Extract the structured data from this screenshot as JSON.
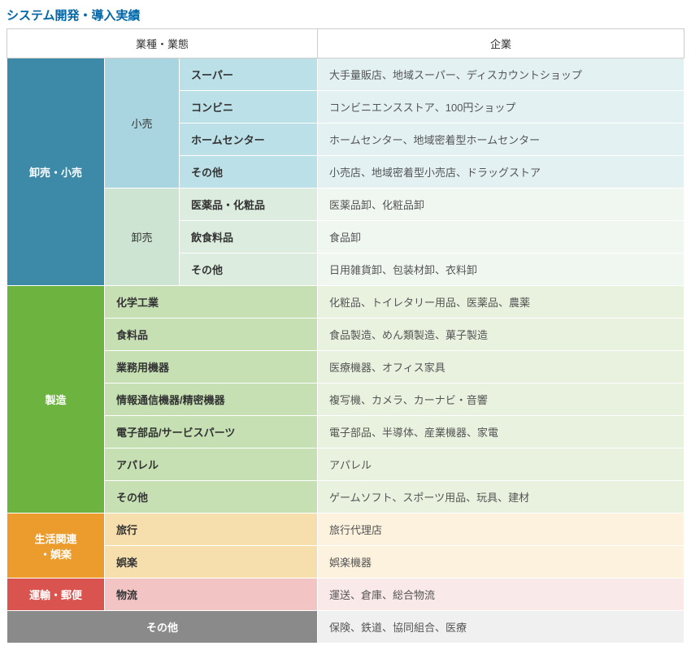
{
  "title": "システム開発・導入実績",
  "headers": {
    "industry": "業種・業態",
    "company": "企業"
  },
  "colors": {
    "retail_main": "#3c8aa8",
    "retail_sub_kouri": "#a8d5df",
    "retail_type_kouri": "#bce0e8",
    "retail_corp_kouri": "#e3f1f2",
    "retail_sub_oroshi": "#cde4d2",
    "retail_type_oroshi": "#dceddf",
    "retail_corp_oroshi": "#f0f7f1",
    "mfg_main": "#6cb33f",
    "mfg_type": "#c6e0b4",
    "mfg_corp": "#e8f2de",
    "life_main": "#ec9b2d",
    "life_type": "#f7dfad",
    "life_corp": "#fcf2de",
    "trans_main": "#d9534f",
    "trans_type": "#f3c4c4",
    "trans_corp": "#fae9e9",
    "other_main": "#8a8a8a",
    "other_corp": "#f0f0f0"
  },
  "sections": {
    "retail": {
      "main": "卸売・小売",
      "kouri": {
        "label": "小売",
        "rows": [
          {
            "type": "スーパー",
            "corp": "大手量販店、地域スーパー、ディスカウントショップ"
          },
          {
            "type": "コンビニ",
            "corp": "コンビニエンスストア、100円ショップ"
          },
          {
            "type": "ホームセンター",
            "corp": "ホームセンター、地域密着型ホームセンター"
          },
          {
            "type": "その他",
            "corp": "小売店、地域密着型小売店、ドラッグストア"
          }
        ]
      },
      "oroshi": {
        "label": "卸売",
        "rows": [
          {
            "type": "医薬品・化粧品",
            "corp": "医薬品卸、化粧品卸"
          },
          {
            "type": "飲食料品",
            "corp": "食品卸"
          },
          {
            "type": "その他",
            "corp": "日用雑貨卸、包装材卸、衣料卸"
          }
        ]
      }
    },
    "mfg": {
      "main": "製造",
      "rows": [
        {
          "type": "化学工業",
          "corp": "化粧品、トイレタリー用品、医薬品、農薬"
        },
        {
          "type": "食料品",
          "corp": "食品製造、めん類製造、菓子製造"
        },
        {
          "type": "業務用機器",
          "corp": "医療機器、オフィス家具"
        },
        {
          "type": "情報通信機器/精密機器",
          "corp": "複写機、カメラ、カーナビ・音響"
        },
        {
          "type": "電子部品/サービスパーツ",
          "corp": "電子部品、半導体、産業機器、家電"
        },
        {
          "type": "アパレル",
          "corp": "アパレル"
        },
        {
          "type": "その他",
          "corp": "ゲームソフト、スポーツ用品、玩具、建材"
        }
      ]
    },
    "life": {
      "main": "生活関連\n・娯楽",
      "rows": [
        {
          "type": "旅行",
          "corp": "旅行代理店"
        },
        {
          "type": "娯楽",
          "corp": "娯楽機器"
        }
      ]
    },
    "trans": {
      "main": "運輸・郵便",
      "rows": [
        {
          "type": "物流",
          "corp": "運送、倉庫、総合物流"
        }
      ]
    },
    "other": {
      "main": "その他",
      "corp": "保険、鉄道、協同組合、医療"
    }
  }
}
